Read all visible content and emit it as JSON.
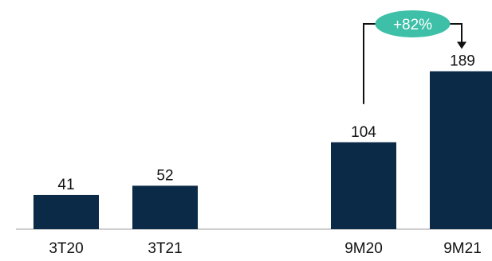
{
  "chart_data": {
    "type": "bar",
    "categories": [
      "3T20",
      "3T21",
      "9M20",
      "9M21"
    ],
    "values": [
      41,
      52,
      104,
      189
    ],
    "value_labels": [
      "41",
      "52",
      "104",
      "189"
    ],
    "ylim": [
      0,
      200
    ],
    "grid": false,
    "legend": "none",
    "annotation": {
      "text": "+82%",
      "from_category": "9M20",
      "to_category": "9M21"
    }
  },
  "colors": {
    "bar": "#0b2a47",
    "badge": "#3dbfa8",
    "baseline": "#bfbfbf",
    "arrow": "#111111"
  }
}
